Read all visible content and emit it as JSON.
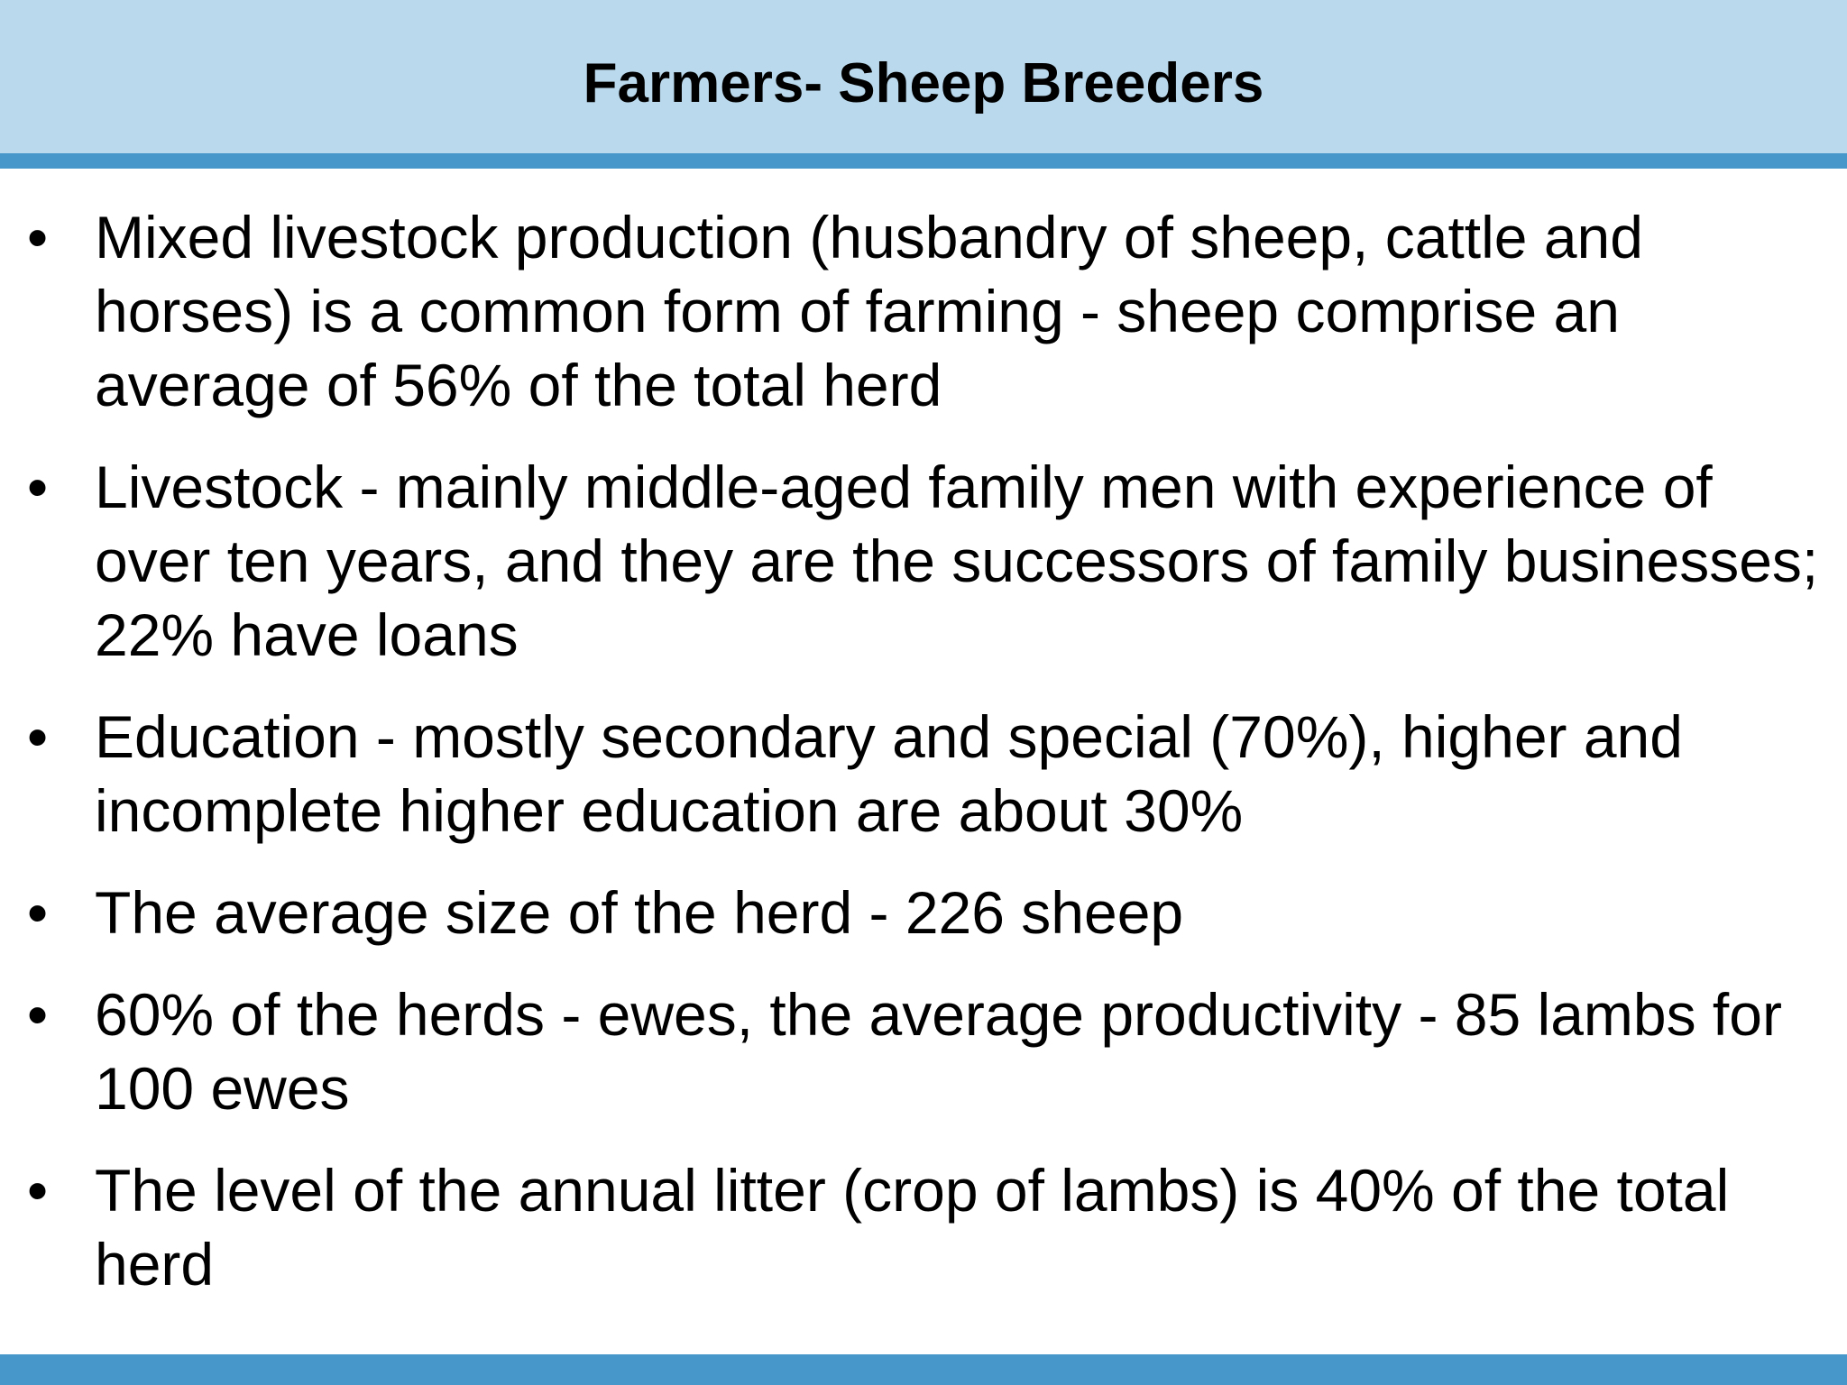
{
  "slide": {
    "title": "Farmers- Sheep Breeders",
    "bullet_symbol": "•",
    "bullets": [
      {
        "text": "Mixed livestock production (husbandry of sheep, cattle and horses) is a common form of farming - sheep comprise an average of 56% of the total herd"
      },
      {
        "text": "Livestock - mainly middle-aged family men with experience of over ten years, and they are the successors of family businesses; 22% have loans"
      },
      {
        "text": "Education - mostly secondary and special (70%), higher and incomplete higher education are about 30%"
      },
      {
        "text": "The average size of the herd - 226 sheep"
      },
      {
        "text": "60% of the herds - ewes, the average productivity - 85 lambs for 100 ewes"
      },
      {
        "text": "The level of the annual litter (crop of lambs) is 40% of the total herd"
      }
    ]
  },
  "colors": {
    "header_background": "#bad9ec",
    "accent_bar": "#4797ca",
    "text": "#000000"
  }
}
